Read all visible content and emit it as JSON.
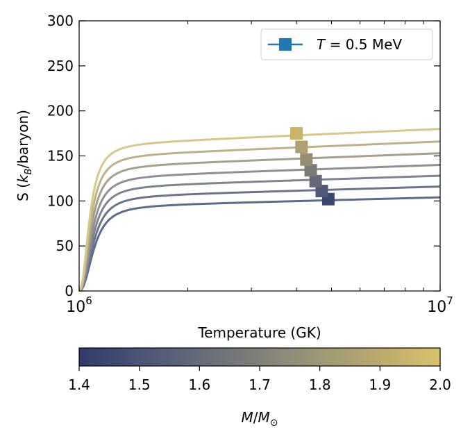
{
  "chart_data": {
    "type": "line",
    "title": "",
    "xlabel": "Temperature (GK)",
    "ylabel_parts": {
      "pre": "S (",
      "k": "k",
      "sub": "B",
      "post": "/baryon)"
    },
    "xscale": "log",
    "xlim": [
      1000000,
      10000000
    ],
    "ylim": [
      0,
      300
    ],
    "yticks": [
      0,
      50,
      100,
      150,
      200,
      250,
      300
    ],
    "xticks_major": [
      {
        "base": "10",
        "exp": "6",
        "value": 1000000
      },
      {
        "base": "10",
        "exp": "7",
        "value": 10000000
      }
    ],
    "xticks_minor": [
      2000000,
      3000000,
      4000000,
      5000000,
      6000000,
      7000000,
      8000000,
      9000000
    ],
    "series": [
      {
        "mass": 1.4,
        "color": "#5b6b8c",
        "s_max": 104,
        "rise_T": 1180000,
        "width_T": 100000
      },
      {
        "mass": 1.5,
        "color": "#6a7488",
        "s_max": 116,
        "rise_T": 1160000,
        "width_T": 95000
      },
      {
        "mass": 1.6,
        "color": "#7d8390",
        "s_max": 128,
        "rise_T": 1140000,
        "width_T": 90000
      },
      {
        "mass": 1.7,
        "color": "#908f92",
        "s_max": 140,
        "rise_T": 1120000,
        "width_T": 85000
      },
      {
        "mass": 1.8,
        "color": "#a59f8c",
        "s_max": 153,
        "rise_T": 1100000,
        "width_T": 80000
      },
      {
        "mass": 1.9,
        "color": "#bcb187",
        "s_max": 166,
        "rise_T": 1080000,
        "width_T": 75000
      },
      {
        "mass": 2.0,
        "color": "#d7c887",
        "s_max": 180,
        "rise_T": 1060000,
        "width_T": 70000
      }
    ],
    "markers": {
      "label_T": "T",
      "label_rest": " = 0.5 MeV",
      "legend_color": "#1f77b4",
      "points": [
        {
          "mass": 1.4,
          "x": 4900000,
          "y": 102,
          "color": "#3a4870"
        },
        {
          "mass": 1.5,
          "x": 4700000,
          "y": 111,
          "color": "#4f5a78"
        },
        {
          "mass": 1.6,
          "x": 4520000,
          "y": 122,
          "color": "#66697a"
        },
        {
          "mass": 1.7,
          "x": 4380000,
          "y": 134,
          "color": "#7c7b78"
        },
        {
          "mass": 1.8,
          "x": 4260000,
          "y": 146,
          "color": "#958e74"
        },
        {
          "mass": 1.9,
          "x": 4130000,
          "y": 160,
          "color": "#aea16e"
        },
        {
          "mass": 2.0,
          "x": 4000000,
          "y": 175,
          "color": "#c7b464"
        }
      ]
    },
    "colorbar": {
      "label_M": "M",
      "label_slash": "/",
      "label_Msun": "M",
      "label_sun": "⊙",
      "min": 1.4,
      "max": 2.0,
      "ticks": [
        "1.4",
        "1.5",
        "1.6",
        "1.7",
        "1.8",
        "1.9",
        "2.0"
      ],
      "colors": [
        "#2f3c6b",
        "#4a5475",
        "#656b7a",
        "#808079",
        "#9c9776",
        "#bba96f",
        "#d6c36b"
      ]
    }
  }
}
